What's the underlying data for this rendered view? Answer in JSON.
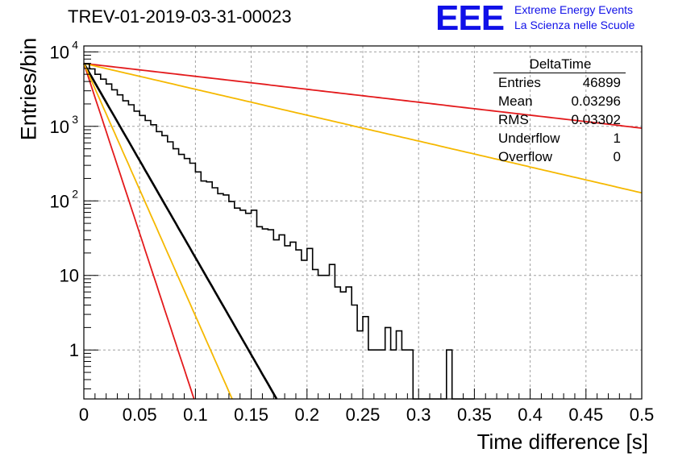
{
  "header": {
    "title": "TREV-01-2019-03-31-00023",
    "logo": "EEE",
    "logo_line1": "Extreme Energy Events",
    "logo_line2": "La Scienza nelle Scuole"
  },
  "stats": {
    "title": "DeltaTime",
    "rows": [
      {
        "label": "Entries",
        "value": "46899"
      },
      {
        "label": "Mean",
        "value": "0.03296"
      },
      {
        "label": "RMS",
        "value": "0.03302"
      },
      {
        "label": "Underflow",
        "value": "1"
      },
      {
        "label": "Overflow",
        "value": "0"
      }
    ]
  },
  "colors": {
    "histogram": "#000000",
    "fit": "#000000",
    "red_curve": "#e31a1c",
    "yellow_curve": "#f5b800",
    "grid": "#a0a0a0",
    "logo": "#1010e8"
  },
  "chart_data": {
    "type": "line",
    "title": "TREV-01-2019-03-31-00023",
    "xlabel": "Time difference [s]",
    "ylabel": "Entries/bin",
    "xlim": [
      0,
      0.5
    ],
    "ylim": [
      0.22,
      12000
    ],
    "ylog": true,
    "grid": true,
    "x_ticks": [
      "0",
      "0.05",
      "0.1",
      "0.15",
      "0.2",
      "0.25",
      "0.3",
      "0.35",
      "0.4",
      "0.45",
      "0.5"
    ],
    "y_ticks": [
      {
        "value": 1,
        "label": "1"
      },
      {
        "value": 10,
        "label": "10"
      },
      {
        "value": 100,
        "label": "10^2"
      },
      {
        "value": 1000,
        "label": "10^3"
      },
      {
        "value": 10000,
        "label": "10^4"
      }
    ],
    "histogram": {
      "bin_width": 0.005,
      "counts": [
        6900,
        5900,
        5000,
        4300,
        3700,
        3100,
        2650,
        2200,
        1950,
        1600,
        1400,
        1200,
        1050,
        850,
        750,
        620,
        500,
        420,
        370,
        320,
        245,
        185,
        180,
        150,
        125,
        120,
        98,
        80,
        75,
        68,
        75,
        45,
        42,
        41,
        30,
        35,
        25,
        28,
        22,
        16,
        23,
        12,
        10,
        10,
        14,
        7,
        6,
        7,
        4,
        1.8,
        2.8,
        1,
        1,
        1,
        2,
        1,
        1.8,
        1,
        1,
        0.2,
        0.2,
        0.2,
        0.2,
        0.2,
        0.2,
        1,
        0.2,
        0.2,
        0.2,
        0.2
      ]
    },
    "series": [
      {
        "color": "#000000",
        "y0": 7000,
        "slope_per_s": 60
      },
      {
        "color": "#e31a1c",
        "y0": 7000,
        "slope_per_s": 4
      },
      {
        "color": "#e31a1c",
        "y0": 7000,
        "slope_per_s": 105
      },
      {
        "color": "#f5b800",
        "y0": 7000,
        "slope_per_s": 8
      },
      {
        "color": "#f5b800",
        "y0": 7000,
        "slope_per_s": 78
      }
    ]
  }
}
